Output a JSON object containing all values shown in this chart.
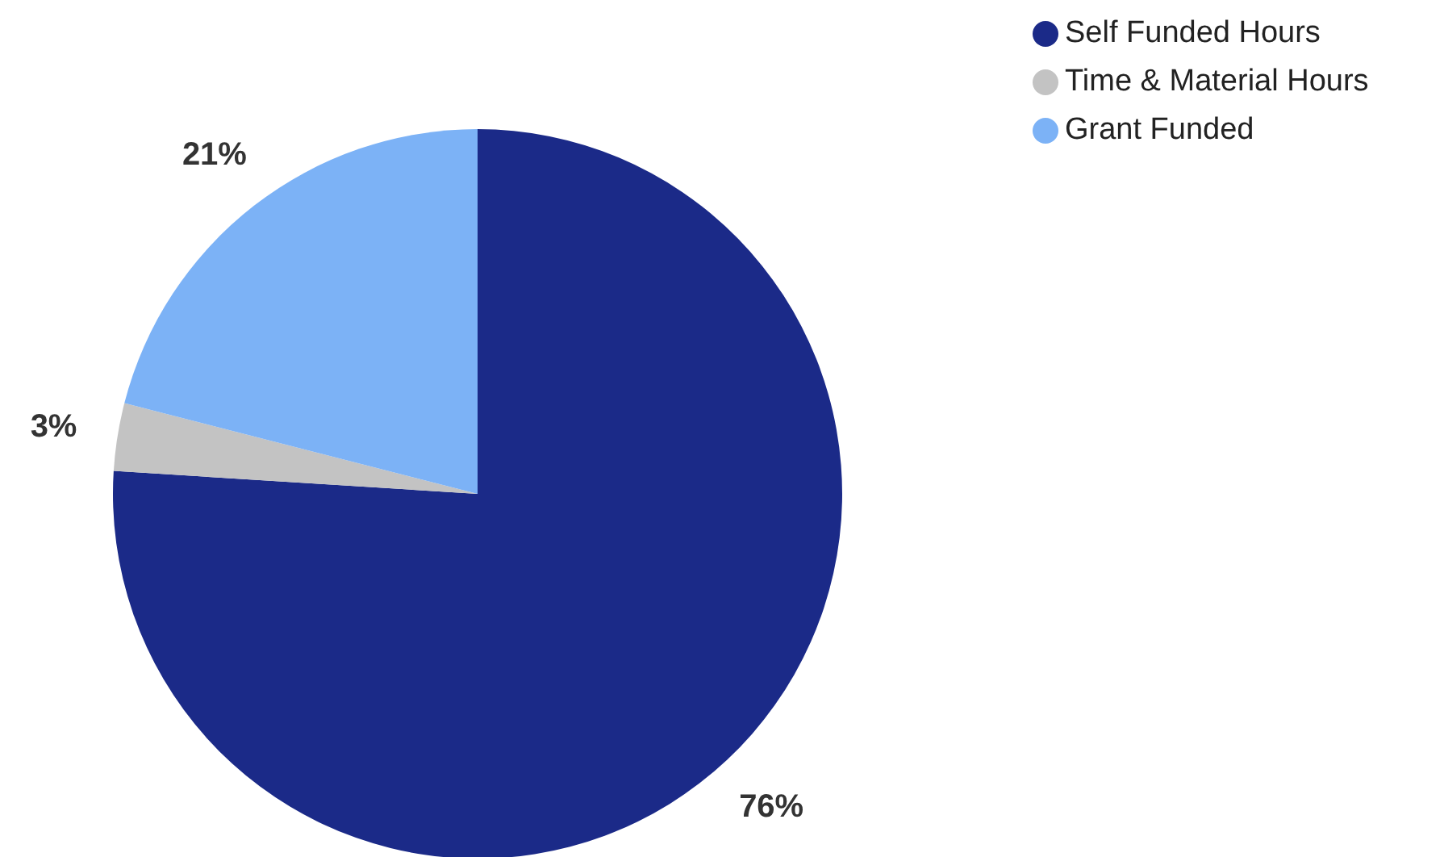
{
  "chart_data": {
    "type": "pie",
    "categories": [
      "Self Funded Hours",
      "Time & Material Hours",
      "Grant Funded"
    ],
    "values": [
      76,
      3,
      21
    ],
    "colors": [
      "#1b2a88",
      "#c3c3c3",
      "#7cb2f6"
    ],
    "value_labels": [
      "76%",
      "3%",
      "21%"
    ],
    "legend": "top right"
  }
}
